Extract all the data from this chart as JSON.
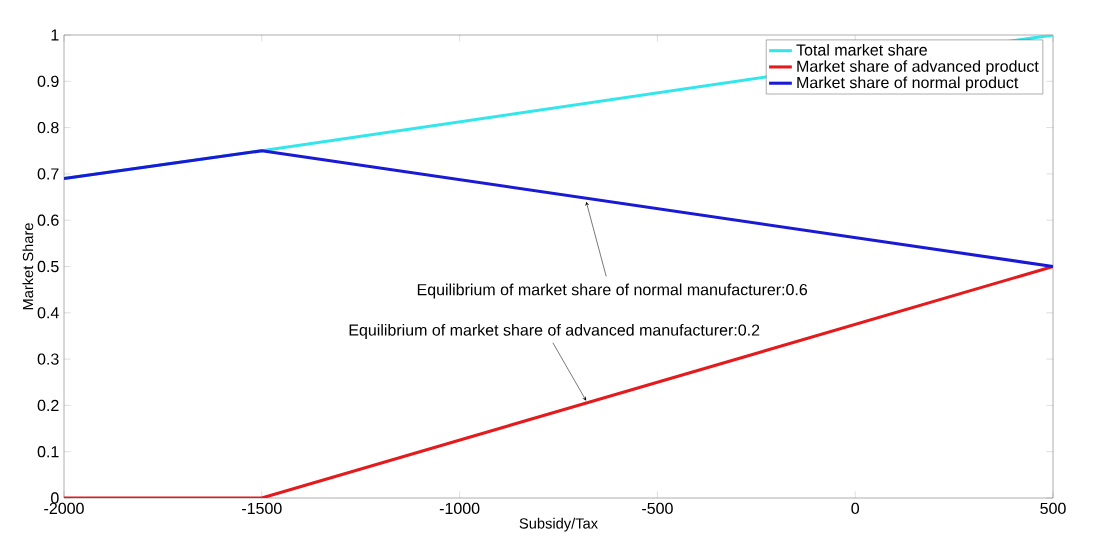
{
  "chart_data": {
    "type": "line",
    "xlabel": "Subsidy/Tax",
    "ylabel": "Market Share",
    "x": [
      -2000,
      -1500,
      500
    ],
    "series": [
      {
        "name": "Total market share",
        "color": "#33e6ec",
        "values": [
          0.69,
          0.75,
          1.0
        ]
      },
      {
        "name": "Market share of advanced product",
        "color": "#e41a1c",
        "values": [
          0,
          0,
          0.5
        ]
      },
      {
        "name": "Market share of normal product",
        "color": "#1a1ad4",
        "values": [
          0.69,
          0.75,
          0.5
        ]
      }
    ],
    "xlim": [
      -2000,
      500
    ],
    "ylim": [
      0,
      1
    ],
    "xticks": [
      -2000,
      -1500,
      -1000,
      -500,
      0,
      500
    ],
    "yticks": [
      0,
      0.1,
      0.2,
      0.3,
      0.4,
      0.5,
      0.6,
      0.7,
      0.8,
      0.9,
      1
    ],
    "annotations": [
      {
        "text": "Equilibrium of market share of normal manufacturer:0.6",
        "x": -680,
        "y": 0.64
      },
      {
        "text": "Equilibrium of market share of advanced manufacturer:0.2",
        "x": -680,
        "y": 0.21
      }
    ],
    "legend": "top right",
    "grid": false,
    "marker": "none",
    "line_style": "solid"
  }
}
